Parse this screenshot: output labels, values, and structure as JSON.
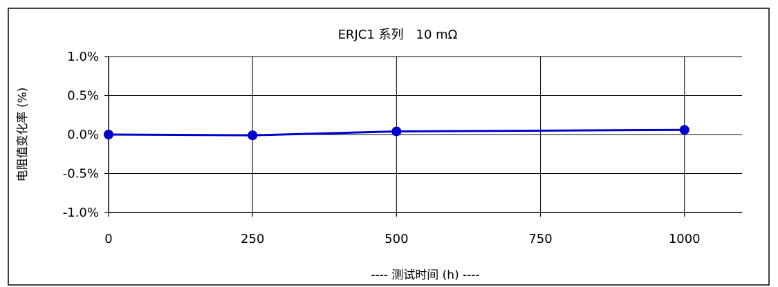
{
  "chart_data": {
    "type": "line",
    "title": "ERJC1 系列　10 mΩ",
    "xlabel": "---- 测试时间 (h) ----",
    "ylabel": "电阻值变化率 (%)",
    "x_ticks": [
      "0",
      "250",
      "500",
      "750",
      "1000"
    ],
    "y_ticks": [
      "1.0%",
      "0.5%",
      "0.0%",
      "-0.5%",
      "-1.0%"
    ],
    "xlim": [
      0,
      1100
    ],
    "ylim": [
      -1.0,
      1.0
    ],
    "grid": true,
    "legend": "none",
    "series": [
      {
        "color": "#0000cc",
        "points": [
          {
            "x": 0,
            "y": 0.0
          },
          {
            "x": 250,
            "y": -0.01
          },
          {
            "x": 500,
            "y": 0.04
          },
          {
            "x": 1000,
            "y": 0.06
          }
        ]
      }
    ]
  }
}
